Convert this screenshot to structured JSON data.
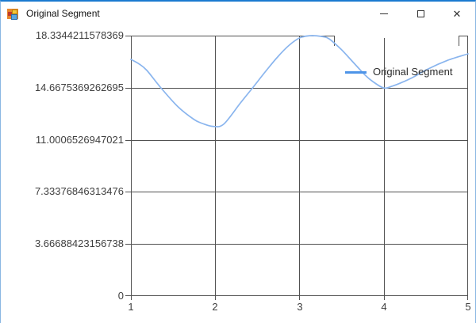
{
  "window": {
    "title": "Original Segment",
    "controls": {
      "close_glyph": "✕"
    }
  },
  "colors": {
    "accent_top": "#1a7ad0",
    "frame": "#8ab7e3",
    "grid": "#515151",
    "axis_text": "#3f3f3f",
    "series_swatch": "#4e94e8",
    "series_line": "#8ab5ee"
  },
  "chart_data": {
    "type": "line",
    "title": "",
    "xlabel": "",
    "ylabel": "",
    "xlim": [
      1,
      5
    ],
    "ylim": [
      0,
      18.3344211578369
    ],
    "grid": true,
    "legend_position": "top-right",
    "y_tick_labels": [
      "18.3344211578369",
      "14.6675369262695",
      "11.0006526947021",
      "7.33376846313476",
      "3.66688423156738",
      "0"
    ],
    "x_tick_labels": [
      "1",
      "2",
      "3",
      "4",
      "5"
    ],
    "series": [
      {
        "name": "Original Segment",
        "points": [
          [
            1.0,
            16.66
          ],
          [
            1.1,
            16.33
          ],
          [
            1.19,
            15.88
          ],
          [
            1.36,
            14.63
          ],
          [
            1.56,
            13.32
          ],
          [
            1.75,
            12.43
          ],
          [
            1.85,
            12.15
          ],
          [
            1.97,
            11.95
          ],
          [
            2.1,
            12.1
          ],
          [
            2.3,
            13.6
          ],
          [
            2.44,
            14.63
          ],
          [
            2.6,
            15.83
          ],
          [
            2.74,
            16.83
          ],
          [
            2.88,
            17.67
          ],
          [
            3.0,
            18.17
          ],
          [
            3.12,
            18.33
          ],
          [
            3.26,
            18.28
          ],
          [
            3.35,
            18.11
          ],
          [
            3.49,
            17.39
          ],
          [
            3.64,
            16.44
          ],
          [
            3.78,
            15.55
          ],
          [
            3.87,
            15.1
          ],
          [
            4.0,
            14.65
          ],
          [
            4.1,
            14.78
          ],
          [
            4.2,
            15.0
          ],
          [
            4.34,
            15.38
          ],
          [
            4.53,
            16.0
          ],
          [
            4.76,
            16.6
          ],
          [
            5.0,
            17.05
          ]
        ]
      }
    ]
  }
}
